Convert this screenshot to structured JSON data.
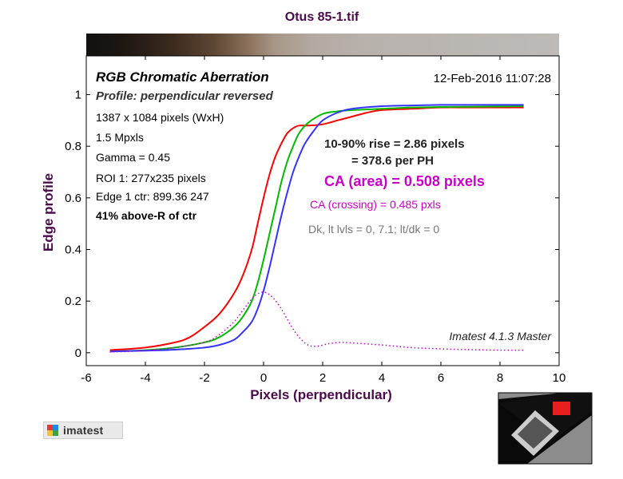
{
  "chart_data": {
    "type": "line",
    "title": "Otus 85-1.tif",
    "xlabel": "Pixels (perpendicular)",
    "ylabel": "Edge profile",
    "xlim": [
      -6,
      10
    ],
    "ylim": [
      -0.05,
      1.15
    ],
    "x_ticks": [
      -6,
      -4,
      -2,
      0,
      2,
      4,
      6,
      8,
      10
    ],
    "y_ticks": [
      0,
      0.2,
      0.4,
      0.6,
      0.8,
      1
    ],
    "tick_labels_x": [
      "-6",
      "-4",
      "-2",
      "0",
      "2",
      "4",
      "6",
      "8",
      "10"
    ],
    "tick_labels_y": [
      "0",
      "0.2",
      "0.4",
      "0.6",
      "0.8",
      "1"
    ],
    "grid": false,
    "series": [
      {
        "color": "#ff0000",
        "x": [
          -5.2,
          -4,
          -3,
          -2.5,
          -2,
          -1.5,
          -1,
          -0.7,
          -0.4,
          -0.2,
          0,
          0.2,
          0.4,
          0.6,
          0.8,
          1.0,
          1.2,
          1.5,
          2.0,
          2.5,
          3.0,
          3.5,
          4,
          5,
          6,
          7,
          8,
          8.8
        ],
        "y": [
          0.01,
          0.02,
          0.04,
          0.06,
          0.1,
          0.15,
          0.23,
          0.3,
          0.4,
          0.5,
          0.6,
          0.69,
          0.76,
          0.81,
          0.85,
          0.87,
          0.88,
          0.88,
          0.885,
          0.9,
          0.915,
          0.93,
          0.94,
          0.945,
          0.95,
          0.95,
          0.95,
          0.95
        ]
      },
      {
        "color": "#00bb00",
        "x": [
          -5.2,
          -4,
          -3,
          -2,
          -1.5,
          -1,
          -0.7,
          -0.4,
          -0.2,
          0,
          0.2,
          0.4,
          0.6,
          0.8,
          1.0,
          1.2,
          1.5,
          2.0,
          2.5,
          3,
          4,
          5,
          6,
          7,
          8,
          8.8
        ],
        "y": [
          0.005,
          0.01,
          0.02,
          0.04,
          0.06,
          0.1,
          0.14,
          0.2,
          0.27,
          0.36,
          0.46,
          0.56,
          0.66,
          0.74,
          0.8,
          0.85,
          0.89,
          0.925,
          0.935,
          0.94,
          0.945,
          0.95,
          0.952,
          0.953,
          0.954,
          0.955
        ]
      },
      {
        "color": "#3333ff",
        "x": [
          -5.2,
          -4,
          -3,
          -2,
          -1.5,
          -1,
          -0.7,
          -0.4,
          -0.2,
          0,
          0.2,
          0.4,
          0.6,
          0.8,
          1.0,
          1.2,
          1.4,
          1.7,
          2.0,
          2.5,
          3,
          4,
          5,
          6,
          7,
          8,
          8.8
        ],
        "y": [
          0.005,
          0.008,
          0.012,
          0.02,
          0.03,
          0.05,
          0.08,
          0.12,
          0.17,
          0.24,
          0.33,
          0.43,
          0.53,
          0.62,
          0.7,
          0.76,
          0.81,
          0.86,
          0.9,
          0.93,
          0.945,
          0.955,
          0.958,
          0.96,
          0.96,
          0.96,
          0.96
        ]
      },
      {
        "color": "#cc00cc",
        "style": "dotted",
        "x": [
          -5.2,
          -4,
          -3,
          -2,
          -1.5,
          -1,
          -0.6,
          -0.3,
          0,
          0.3,
          0.6,
          0.9,
          1.2,
          1.5,
          1.8,
          2.2,
          2.6,
          3.0,
          4,
          5,
          6,
          7,
          8,
          8.8
        ],
        "y": [
          0.003,
          0.008,
          0.02,
          0.04,
          0.07,
          0.12,
          0.18,
          0.22,
          0.235,
          0.215,
          0.17,
          0.11,
          0.06,
          0.03,
          0.025,
          0.035,
          0.04,
          0.038,
          0.03,
          0.02,
          0.015,
          0.012,
          0.01,
          0.01
        ]
      }
    ],
    "annotations": {
      "heading": "RGB Chromatic Aberration",
      "profile": "Profile: perpendicular reversed",
      "timestamp": "12-Feb-2016 11:07:28",
      "size": "1387 x 1084 pixels (WxH)",
      "mpxls": "1.5 Mpxls",
      "gamma": "Gamma = 0.45",
      "roi": "ROI 1: 277x235 pixels",
      "edge": "Edge 1 ctr: 899.36  247",
      "above": "41% above-R of ctr",
      "rise1": "10-90% rise = 2.86 pixels",
      "rise2": "= 378.6 per PH",
      "ca_area": "CA (area) = 0.508 pixels",
      "ca_crossing": "CA (crossing) = 0.485 pxls",
      "levels": "Dk, lt lvls = 0, 7.1;  lt/dk = 0",
      "software": "Imatest 4.1.3  Master"
    }
  },
  "logo": {
    "text": "imatest",
    "colors": [
      "#e53935",
      "#1e88e5",
      "#fbc02d",
      "#43a047"
    ]
  },
  "colors": {
    "title": "#4b0a4b",
    "ca_magenta": "#cc00cc",
    "gray_text": "#777777"
  }
}
